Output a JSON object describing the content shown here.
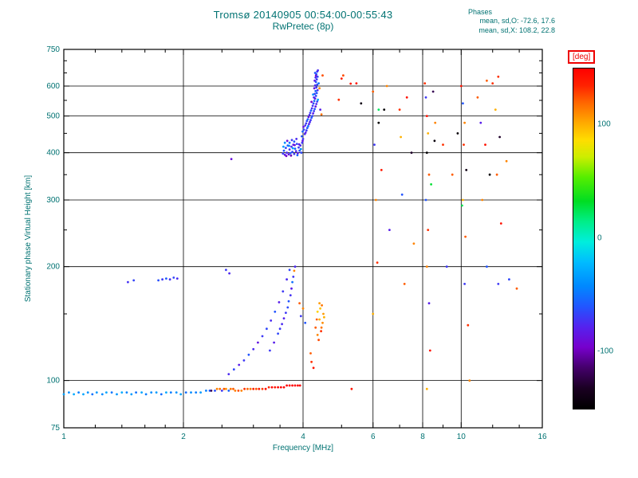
{
  "title": "Tromsø 20140905 00:54:00-00:55:43",
  "subtitle": "RwPretec (8p)",
  "phases": {
    "header": "Phases",
    "line1": "mean, sd,O: -72.6, 17.6",
    "line2": "mean, sd,X: 108.2, 22.8"
  },
  "colors": {
    "label_teal": "#007272",
    "deg_red": "#ee0000",
    "frame_black": "#000000",
    "background": "#ffffff"
  },
  "colorbar": {
    "unit_label": "[deg]",
    "range": [
      -150,
      150
    ],
    "ticks": [
      {
        "value": 100,
        "label": "100"
      },
      {
        "value": 0,
        "label": "0"
      },
      {
        "value": -100,
        "label": "-100"
      }
    ],
    "stops": [
      [
        0.0,
        "#000000"
      ],
      [
        0.06,
        "#1a0022"
      ],
      [
        0.12,
        "#44006a"
      ],
      [
        0.18,
        "#7700cc"
      ],
      [
        0.24,
        "#5522ee"
      ],
      [
        0.3,
        "#2255ff"
      ],
      [
        0.36,
        "#0088ff"
      ],
      [
        0.43,
        "#00bbff"
      ],
      [
        0.49,
        "#00eedd"
      ],
      [
        0.55,
        "#00ee88"
      ],
      [
        0.61,
        "#00dd22"
      ],
      [
        0.68,
        "#55ee00"
      ],
      [
        0.74,
        "#ccee00"
      ],
      [
        0.79,
        "#ffdd00"
      ],
      [
        0.84,
        "#ffaa00"
      ],
      [
        0.9,
        "#ff6600"
      ],
      [
        0.95,
        "#ff2200"
      ],
      [
        1.0,
        "#ff0000"
      ]
    ]
  },
  "chart_data": {
    "type": "scatter",
    "title": "Tromsø 20140905 00:54:00-00:55:43  RwPretec (8p)",
    "xlabel": "Frequency [MHz]",
    "ylabel": "Stationary phase Virtual Height [km]",
    "xscale": "log",
    "yscale": "log",
    "xlim": [
      1,
      16
    ],
    "ylim": [
      75,
      750
    ],
    "xticks": [
      1,
      2,
      4,
      6,
      8,
      10,
      16
    ],
    "yticks": [
      75,
      100,
      200,
      300,
      400,
      500,
      600,
      750
    ],
    "minor_xticks": [
      1.2,
      1.4,
      1.6,
      1.8,
      2.5,
      3,
      3.5,
      5,
      7,
      9,
      12,
      14
    ],
    "minor_yticks": [
      150,
      250,
      350,
      450,
      550,
      650,
      700
    ],
    "grid_x": [
      2,
      4,
      6,
      8,
      10
    ],
    "grid_y": [
      100,
      200,
      300,
      400,
      500,
      600
    ],
    "color_value": "phase_deg",
    "points": [
      [
        1.0,
        92,
        -32
      ],
      [
        1.03,
        93,
        -40
      ],
      [
        1.06,
        92,
        -28
      ],
      [
        1.09,
        93,
        -45
      ],
      [
        1.12,
        92,
        -30
      ],
      [
        1.15,
        93,
        -38
      ],
      [
        1.18,
        92,
        -50
      ],
      [
        1.21,
        93,
        -35
      ],
      [
        1.25,
        92,
        -42
      ],
      [
        1.28,
        93,
        -30
      ],
      [
        1.32,
        93,
        -48
      ],
      [
        1.36,
        92,
        -36
      ],
      [
        1.4,
        93,
        -28
      ],
      [
        1.44,
        93,
        -44
      ],
      [
        1.48,
        92,
        -34
      ],
      [
        1.52,
        93,
        -50
      ],
      [
        1.57,
        93,
        -30
      ],
      [
        1.61,
        92,
        -46
      ],
      [
        1.66,
        93,
        -40
      ],
      [
        1.71,
        93,
        -34
      ],
      [
        1.76,
        92,
        -52
      ],
      [
        1.81,
        93,
        -28
      ],
      [
        1.86,
        93,
        -46
      ],
      [
        1.92,
        93,
        -38
      ],
      [
        1.97,
        92,
        -32
      ],
      [
        2.03,
        93,
        -52
      ],
      [
        2.09,
        93,
        -40
      ],
      [
        2.15,
        93,
        -46
      ],
      [
        2.21,
        93,
        -34
      ],
      [
        2.28,
        94,
        -44
      ],
      [
        2.33,
        94,
        -58
      ],
      [
        2.35,
        94,
        -120
      ],
      [
        2.4,
        94,
        -62
      ],
      [
        2.43,
        95,
        112
      ],
      [
        2.47,
        95,
        118
      ],
      [
        2.5,
        94,
        -70
      ],
      [
        2.53,
        95,
        124
      ],
      [
        2.56,
        95,
        108
      ],
      [
        2.6,
        94,
        -55
      ],
      [
        2.63,
        95,
        116
      ],
      [
        2.67,
        95,
        122
      ],
      [
        2.7,
        94,
        114
      ],
      [
        2.75,
        94,
        126
      ],
      [
        2.8,
        94,
        112
      ],
      [
        2.85,
        95,
        132
      ],
      [
        2.9,
        95,
        120
      ],
      [
        2.95,
        95,
        116
      ],
      [
        3.0,
        95,
        136
      ],
      [
        3.05,
        95,
        124
      ],
      [
        3.1,
        95,
        140
      ],
      [
        3.16,
        95,
        130
      ],
      [
        3.22,
        95,
        144
      ],
      [
        3.28,
        96,
        134
      ],
      [
        3.34,
        96,
        148
      ],
      [
        3.4,
        96,
        140
      ],
      [
        3.46,
        96,
        152
      ],
      [
        3.52,
        96,
        148
      ],
      [
        3.58,
        96,
        158
      ],
      [
        3.64,
        97,
        154
      ],
      [
        3.7,
        97,
        162
      ],
      [
        3.76,
        97,
        158
      ],
      [
        3.82,
        97,
        166
      ],
      [
        3.88,
        97,
        162
      ],
      [
        3.93,
        97,
        158
      ],
      [
        1.45,
        182,
        -72
      ],
      [
        1.5,
        184,
        -66
      ],
      [
        1.73,
        184,
        -62
      ],
      [
        1.77,
        185,
        -70
      ],
      [
        1.81,
        186,
        -58
      ],
      [
        1.85,
        185,
        -72
      ],
      [
        1.89,
        187,
        -66
      ],
      [
        1.93,
        186,
        -74
      ],
      [
        2.56,
        196,
        -70
      ],
      [
        2.61,
        192,
        -76
      ],
      [
        2.64,
        385,
        -88
      ],
      [
        3.56,
        398,
        -70
      ],
      [
        3.58,
        405,
        -60
      ],
      [
        3.6,
        395,
        -80
      ],
      [
        3.62,
        412,
        -65
      ],
      [
        3.64,
        400,
        -75
      ],
      [
        3.66,
        418,
        -55
      ],
      [
        3.68,
        396,
        -85
      ],
      [
        3.7,
        408,
        -70
      ],
      [
        3.72,
        399,
        -60
      ],
      [
        3.74,
        415,
        -75
      ],
      [
        3.76,
        402,
        -65
      ],
      [
        3.78,
        420,
        -80
      ],
      [
        3.8,
        397,
        -70
      ],
      [
        3.82,
        410,
        -55
      ],
      [
        3.84,
        404,
        -75
      ],
      [
        3.86,
        422,
        -65
      ],
      [
        3.88,
        399,
        -85
      ],
      [
        3.9,
        413,
        -70
      ],
      [
        3.92,
        405,
        -60
      ],
      [
        3.94,
        418,
        -75
      ],
      [
        3.96,
        400,
        -65
      ],
      [
        3.98,
        425,
        -70
      ],
      [
        3.6,
        425,
        -40
      ],
      [
        3.65,
        430,
        -90
      ],
      [
        3.7,
        425,
        -50
      ],
      [
        3.75,
        432,
        -70
      ],
      [
        3.8,
        428,
        -60
      ],
      [
        3.85,
        435,
        -75
      ],
      [
        3.57,
        415,
        -35
      ],
      [
        3.63,
        392,
        -95
      ],
      [
        3.69,
        417,
        -45
      ],
      [
        3.73,
        393,
        -100
      ],
      [
        3.77,
        411,
        -30
      ],
      [
        3.81,
        419,
        -90
      ],
      [
        3.87,
        394,
        -55
      ],
      [
        3.91,
        421,
        -80
      ],
      [
        3.95,
        409,
        -40
      ],
      [
        3.99,
        430,
        -85
      ],
      [
        4.0,
        435,
        -70
      ],
      [
        3.97,
        442,
        -60
      ],
      [
        4.04,
        448,
        -75
      ],
      [
        3.99,
        455,
        -55
      ],
      [
        4.06,
        452,
        -80
      ],
      [
        4.02,
        460,
        -65
      ],
      [
        4.08,
        458,
        -70
      ],
      [
        4.01,
        468,
        -85
      ],
      [
        4.1,
        465,
        -60
      ],
      [
        4.05,
        472,
        -75
      ],
      [
        4.12,
        470,
        -50
      ],
      [
        4.07,
        478,
        -70
      ],
      [
        4.14,
        476,
        -80
      ],
      [
        4.09,
        485,
        -65
      ],
      [
        4.16,
        482,
        -75
      ],
      [
        4.11,
        490,
        -55
      ],
      [
        4.18,
        488,
        -70
      ],
      [
        4.13,
        497,
        -85
      ],
      [
        4.2,
        495,
        -60
      ],
      [
        4.15,
        503,
        -75
      ],
      [
        4.22,
        500,
        -65
      ],
      [
        4.17,
        510,
        -70
      ],
      [
        4.24,
        508,
        -80
      ],
      [
        4.19,
        517,
        -55
      ],
      [
        4.26,
        515,
        -70
      ],
      [
        4.21,
        524,
        -75
      ],
      [
        4.28,
        522,
        -60
      ],
      [
        4.23,
        532,
        -70
      ],
      [
        4.3,
        530,
        -85
      ],
      [
        4.25,
        540,
        -65
      ],
      [
        4.32,
        538,
        -75
      ],
      [
        4.27,
        548,
        -55
      ],
      [
        4.34,
        546,
        -70
      ],
      [
        4.29,
        556,
        -80
      ],
      [
        4.31,
        565,
        -65
      ],
      [
        4.26,
        560,
        -75
      ],
      [
        4.33,
        575,
        -60
      ],
      [
        4.28,
        572,
        -70
      ],
      [
        4.35,
        585,
        -75
      ],
      [
        4.3,
        582,
        -55
      ],
      [
        4.32,
        595,
        -70
      ],
      [
        4.27,
        592,
        -85
      ],
      [
        4.34,
        605,
        -65
      ],
      [
        4.29,
        602,
        -75
      ],
      [
        4.31,
        615,
        -60
      ],
      [
        4.33,
        625,
        -70
      ],
      [
        4.28,
        620,
        -80
      ],
      [
        4.35,
        635,
        -65
      ],
      [
        4.3,
        632,
        -75
      ],
      [
        4.32,
        645,
        -55
      ],
      [
        4.34,
        655,
        -70
      ],
      [
        4.29,
        650,
        -60
      ],
      [
        4.36,
        660,
        -75
      ],
      [
        4.31,
        640,
        -90
      ],
      [
        4.24,
        570,
        -40
      ],
      [
        4.2,
        545,
        -95
      ],
      [
        4.38,
        610,
        -50
      ],
      [
        4.4,
        592,
        112
      ],
      [
        4.36,
        552,
        -30
      ],
      [
        4.42,
        520,
        -80
      ],
      [
        4.45,
        505,
        118
      ],
      [
        4.48,
        640,
        125
      ],
      [
        4.92,
        552,
        132
      ],
      [
        5.0,
        628,
        136
      ],
      [
        5.05,
        640,
        126
      ],
      [
        5.27,
        609,
        140
      ],
      [
        5.45,
        610,
        142
      ],
      [
        5.3,
        95,
        140
      ],
      [
        2.6,
        104,
        -75
      ],
      [
        2.68,
        107,
        -65
      ],
      [
        2.76,
        110,
        -80
      ],
      [
        2.84,
        113,
        -70
      ],
      [
        2.92,
        117,
        -60
      ],
      [
        3.0,
        121,
        -75
      ],
      [
        3.08,
        126,
        -85
      ],
      [
        3.16,
        131,
        -70
      ],
      [
        3.24,
        137,
        -65
      ],
      [
        3.32,
        144,
        -75
      ],
      [
        3.4,
        152,
        -60
      ],
      [
        3.48,
        161,
        -80
      ],
      [
        3.56,
        172,
        -70
      ],
      [
        3.64,
        185,
        -75
      ],
      [
        3.7,
        196,
        -65
      ],
      [
        3.3,
        120,
        -70
      ],
      [
        3.38,
        126,
        -80
      ],
      [
        3.46,
        133,
        -65
      ],
      [
        3.54,
        141,
        -75
      ],
      [
        3.62,
        151,
        -70
      ],
      [
        3.68,
        162,
        -60
      ],
      [
        3.74,
        175,
        -80
      ],
      [
        3.78,
        188,
        -70
      ],
      [
        3.82,
        200,
        -75
      ],
      [
        3.8,
        195,
        112
      ],
      [
        3.76,
        182,
        -50
      ],
      [
        3.72,
        168,
        -72
      ],
      [
        3.66,
        156,
        -64
      ],
      [
        3.58,
        146,
        -78
      ],
      [
        3.5,
        137,
        -70
      ],
      [
        3.95,
        148,
        -70
      ],
      [
        4.0,
        155,
        112
      ],
      [
        4.05,
        142,
        -60
      ],
      [
        3.92,
        160,
        122
      ],
      [
        4.3,
        138,
        122
      ],
      [
        4.35,
        132,
        112
      ],
      [
        4.4,
        145,
        100
      ],
      [
        4.45,
        138,
        116
      ],
      [
        4.5,
        150,
        106
      ],
      [
        4.42,
        155,
        95
      ],
      [
        4.38,
        128,
        126
      ],
      [
        4.48,
        142,
        110
      ],
      [
        4.44,
        135,
        132
      ],
      [
        4.52,
        147,
        100
      ],
      [
        4.35,
        152,
        90
      ],
      [
        4.46,
        158,
        116
      ],
      [
        4.4,
        160,
        106
      ],
      [
        4.33,
        145,
        122
      ],
      [
        4.2,
        112,
        132
      ],
      [
        4.25,
        108,
        142
      ],
      [
        4.18,
        118,
        122
      ],
      [
        5.6,
        540,
        -140
      ],
      [
        6.0,
        580,
        122
      ],
      [
        6.05,
        420,
        -70
      ],
      [
        6.1,
        300,
        112
      ],
      [
        6.15,
        205,
        132
      ],
      [
        6.2,
        480,
        -150
      ],
      [
        6.0,
        150,
        100
      ],
      [
        6.3,
        360,
        140
      ],
      [
        6.5,
        600,
        112
      ],
      [
        6.6,
        250,
        -80
      ],
      [
        6.4,
        520,
        -148
      ],
      [
        6.2,
        520,
        22
      ],
      [
        7.0,
        520,
        132
      ],
      [
        7.05,
        440,
        100
      ],
      [
        7.1,
        310,
        -60
      ],
      [
        7.2,
        180,
        122
      ],
      [
        7.3,
        560,
        142
      ],
      [
        7.5,
        400,
        -130
      ],
      [
        7.6,
        230,
        112
      ],
      [
        8.1,
        610,
        132
      ],
      [
        8.15,
        560,
        -70
      ],
      [
        8.2,
        500,
        142
      ],
      [
        8.25,
        450,
        100
      ],
      [
        8.2,
        400,
        -148
      ],
      [
        8.3,
        350,
        122
      ],
      [
        8.15,
        300,
        -60
      ],
      [
        8.25,
        250,
        132
      ],
      [
        8.2,
        200,
        112
      ],
      [
        8.3,
        160,
        -80
      ],
      [
        8.35,
        120,
        142
      ],
      [
        8.2,
        95,
        100
      ],
      [
        8.4,
        330,
        30
      ],
      [
        8.5,
        580,
        -120
      ],
      [
        8.57,
        430,
        -145
      ],
      [
        8.6,
        480,
        112
      ],
      [
        9.0,
        420,
        132
      ],
      [
        9.2,
        200,
        -70
      ],
      [
        9.5,
        350,
        122
      ],
      [
        9.8,
        450,
        -146
      ],
      [
        10.0,
        600,
        142
      ],
      [
        10.05,
        290,
        25
      ],
      [
        10.1,
        540,
        -60
      ],
      [
        10.2,
        480,
        112
      ],
      [
        10.15,
        420,
        132
      ],
      [
        10.3,
        360,
        -140
      ],
      [
        10.1,
        300,
        100
      ],
      [
        10.25,
        240,
        122
      ],
      [
        10.2,
        180,
        -70
      ],
      [
        10.4,
        140,
        132
      ],
      [
        10.5,
        100,
        112
      ],
      [
        11.0,
        560,
        122
      ],
      [
        11.2,
        480,
        -80
      ],
      [
        11.5,
        420,
        142
      ],
      [
        11.3,
        300,
        112
      ],
      [
        11.6,
        200,
        -60
      ],
      [
        11.6,
        620,
        122
      ],
      [
        11.8,
        350,
        -147
      ],
      [
        12.0,
        610,
        132
      ],
      [
        12.2,
        520,
        100
      ],
      [
        12.4,
        635,
        132
      ],
      [
        12.5,
        440,
        -130
      ],
      [
        12.3,
        350,
        122
      ],
      [
        12.6,
        260,
        142
      ],
      [
        12.4,
        180,
        -70
      ],
      [
        13.0,
        380,
        112
      ],
      [
        13.2,
        185,
        -65
      ],
      [
        13.8,
        175,
        122
      ]
    ]
  }
}
